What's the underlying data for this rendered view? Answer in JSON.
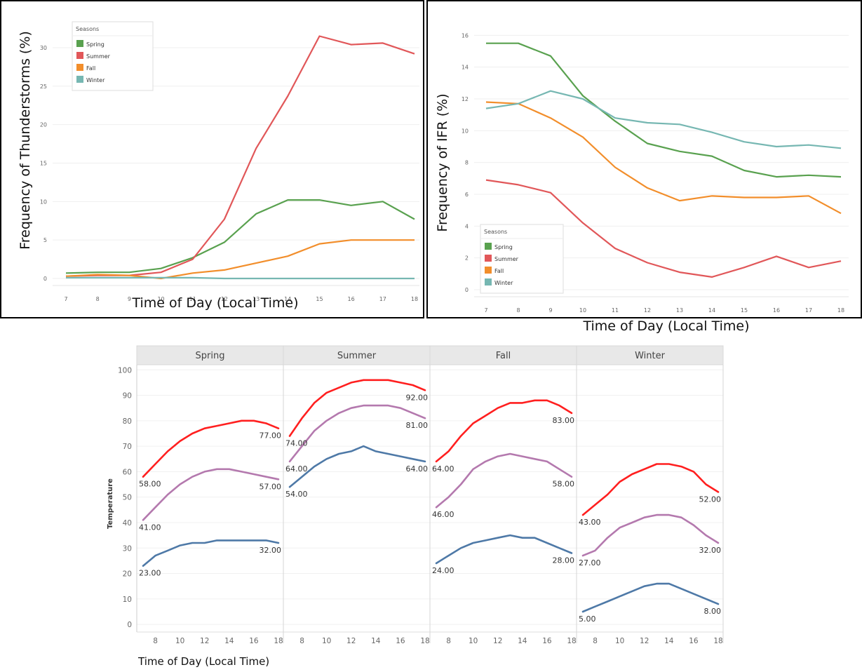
{
  "chart_data": [
    {
      "type": "line",
      "ylabel": "Frequency of Thunderstorms (%)",
      "xlabel": "Time of Day (Local Time)",
      "x": [
        7,
        8,
        9,
        10,
        11,
        12,
        13,
        14,
        15,
        16,
        17,
        18
      ],
      "ylim": [
        0,
        32
      ],
      "yticks": [
        0,
        5,
        10,
        15,
        20,
        25,
        30
      ],
      "legend": {
        "title": "Seasons",
        "placement": "top-left"
      },
      "series": [
        {
          "name": "Spring",
          "color": "#59a14f",
          "values": [
            0.7,
            0.8,
            0.8,
            1.3,
            2.7,
            4.7,
            8.4,
            10.2,
            10.2,
            9.5,
            10.0,
            7.7
          ]
        },
        {
          "name": "Summer",
          "color": "#e15759",
          "values": [
            0.3,
            0.4,
            0.4,
            0.8,
            2.5,
            7.7,
            16.9,
            23.7,
            31.5,
            30.4,
            30.6,
            29.2
          ]
        },
        {
          "name": "Fall",
          "color": "#f28e2b",
          "values": [
            0.3,
            0.5,
            0.4,
            0.0,
            0.7,
            1.1,
            2.0,
            2.9,
            4.5,
            5.0,
            5.0,
            5.0
          ]
        },
        {
          "name": "Winter",
          "color": "#76b7b2",
          "values": [
            0.1,
            0.1,
            0.1,
            0.1,
            0.1,
            0.0,
            0.0,
            0.0,
            0.0,
            0.0,
            0.0,
            0.0
          ]
        }
      ]
    },
    {
      "type": "line",
      "ylabel": "Frequency of IFR (%)",
      "xlabel": "Time of Day (Local Time)",
      "x": [
        7,
        8,
        9,
        10,
        11,
        12,
        13,
        14,
        15,
        16,
        17,
        18
      ],
      "ylim": [
        0,
        16.5
      ],
      "yticks": [
        0,
        2,
        4,
        6,
        8,
        10,
        12,
        14,
        16
      ],
      "legend": {
        "title": "Seasons",
        "placement": "bottom-left"
      },
      "series": [
        {
          "name": "Spring",
          "color": "#59a14f",
          "values": [
            15.5,
            15.5,
            14.7,
            12.2,
            10.6,
            9.2,
            8.7,
            8.4,
            7.5,
            7.1,
            7.2,
            7.1
          ]
        },
        {
          "name": "Summer",
          "color": "#e15759",
          "values": [
            6.9,
            6.6,
            6.1,
            4.2,
            2.6,
            1.7,
            1.1,
            0.8,
            1.4,
            2.1,
            1.4,
            1.8
          ]
        },
        {
          "name": "Fall",
          "color": "#f28e2b",
          "values": [
            11.8,
            11.7,
            10.8,
            9.6,
            7.7,
            6.4,
            5.6,
            5.9,
            5.8,
            5.8,
            5.9,
            4.8
          ]
        },
        {
          "name": "Winter",
          "color": "#76b7b2",
          "values": [
            11.4,
            11.7,
            12.5,
            12.0,
            10.8,
            10.5,
            10.4,
            9.9,
            9.3,
            9.0,
            9.1,
            8.9
          ]
        }
      ]
    },
    {
      "type": "line",
      "ylabel": "Temperature",
      "xlabel": "Time of Day (Local Time)",
      "x": [
        7,
        8,
        9,
        10,
        11,
        12,
        13,
        14,
        15,
        16,
        17,
        18
      ],
      "xticks": [
        8,
        10,
        12,
        14,
        16,
        18
      ],
      "ylim": [
        -3,
        102
      ],
      "yticks": [
        0,
        10,
        20,
        30,
        40,
        50,
        60,
        70,
        80,
        90,
        100
      ],
      "facets": [
        {
          "name": "Spring",
          "series": [
            {
              "color": "#ff1f1f",
              "values": [
                58,
                63,
                68,
                72,
                75,
                77,
                78,
                79,
                80,
                80,
                79,
                77
              ],
              "labels": {
                "start": "58.00",
                "end": "77.00"
              }
            },
            {
              "color": "#b479ae",
              "values": [
                41,
                46,
                51,
                55,
                58,
                60,
                61,
                61,
                60,
                59,
                58,
                57
              ],
              "labels": {
                "start": "41.00",
                "end": "57.00"
              }
            },
            {
              "color": "#4e79a7",
              "values": [
                23,
                27,
                29,
                31,
                32,
                32,
                33,
                33,
                33,
                33,
                33,
                32
              ],
              "labels": {
                "start": "23.00",
                "end": "32.00"
              }
            }
          ]
        },
        {
          "name": "Summer",
          "series": [
            {
              "color": "#ff1f1f",
              "values": [
                74,
                81,
                87,
                91,
                93,
                95,
                96,
                96,
                96,
                95,
                94,
                92
              ],
              "labels": {
                "start": "74.00",
                "end": "92.00"
              }
            },
            {
              "color": "#b479ae",
              "values": [
                64,
                70,
                76,
                80,
                83,
                85,
                86,
                86,
                86,
                85,
                83,
                81
              ],
              "labels": {
                "start": "64.00",
                "end": "81.00"
              }
            },
            {
              "color": "#4e79a7",
              "values": [
                54,
                58,
                62,
                65,
                67,
                68,
                70,
                68,
                67,
                66,
                65,
                64
              ],
              "labels": {
                "start": "54.00",
                "end": "64.00"
              }
            }
          ]
        },
        {
          "name": "Fall",
          "series": [
            {
              "color": "#ff1f1f",
              "values": [
                64,
                68,
                74,
                79,
                82,
                85,
                87,
                87,
                88,
                88,
                86,
                83
              ],
              "labels": {
                "start": "64.00",
                "end": "83.00"
              }
            },
            {
              "color": "#b479ae",
              "values": [
                46,
                50,
                55,
                61,
                64,
                66,
                67,
                66,
                65,
                64,
                61,
                58
              ],
              "labels": {
                "start": "46.00",
                "end": "58.00"
              }
            },
            {
              "color": "#4e79a7",
              "values": [
                24,
                27,
                30,
                32,
                33,
                34,
                35,
                34,
                34,
                32,
                30,
                28
              ],
              "labels": {
                "start": "24.00",
                "end": "28.00"
              }
            }
          ]
        },
        {
          "name": "Winter",
          "series": [
            {
              "color": "#ff1f1f",
              "values": [
                43,
                47,
                51,
                56,
                59,
                61,
                63,
                63,
                62,
                60,
                55,
                52
              ],
              "labels": {
                "start": "43.00",
                "end": "52.00"
              }
            },
            {
              "color": "#b479ae",
              "values": [
                27,
                29,
                34,
                38,
                40,
                42,
                43,
                43,
                42,
                39,
                35,
                32
              ],
              "labels": {
                "start": "27.00",
                "end": "32.00"
              }
            },
            {
              "color": "#4e79a7",
              "values": [
                5,
                7,
                9,
                11,
                13,
                15,
                16,
                16,
                14,
                12,
                10,
                8
              ],
              "labels": {
                "start": "5.00",
                "end": "8.00"
              }
            }
          ]
        }
      ]
    }
  ]
}
